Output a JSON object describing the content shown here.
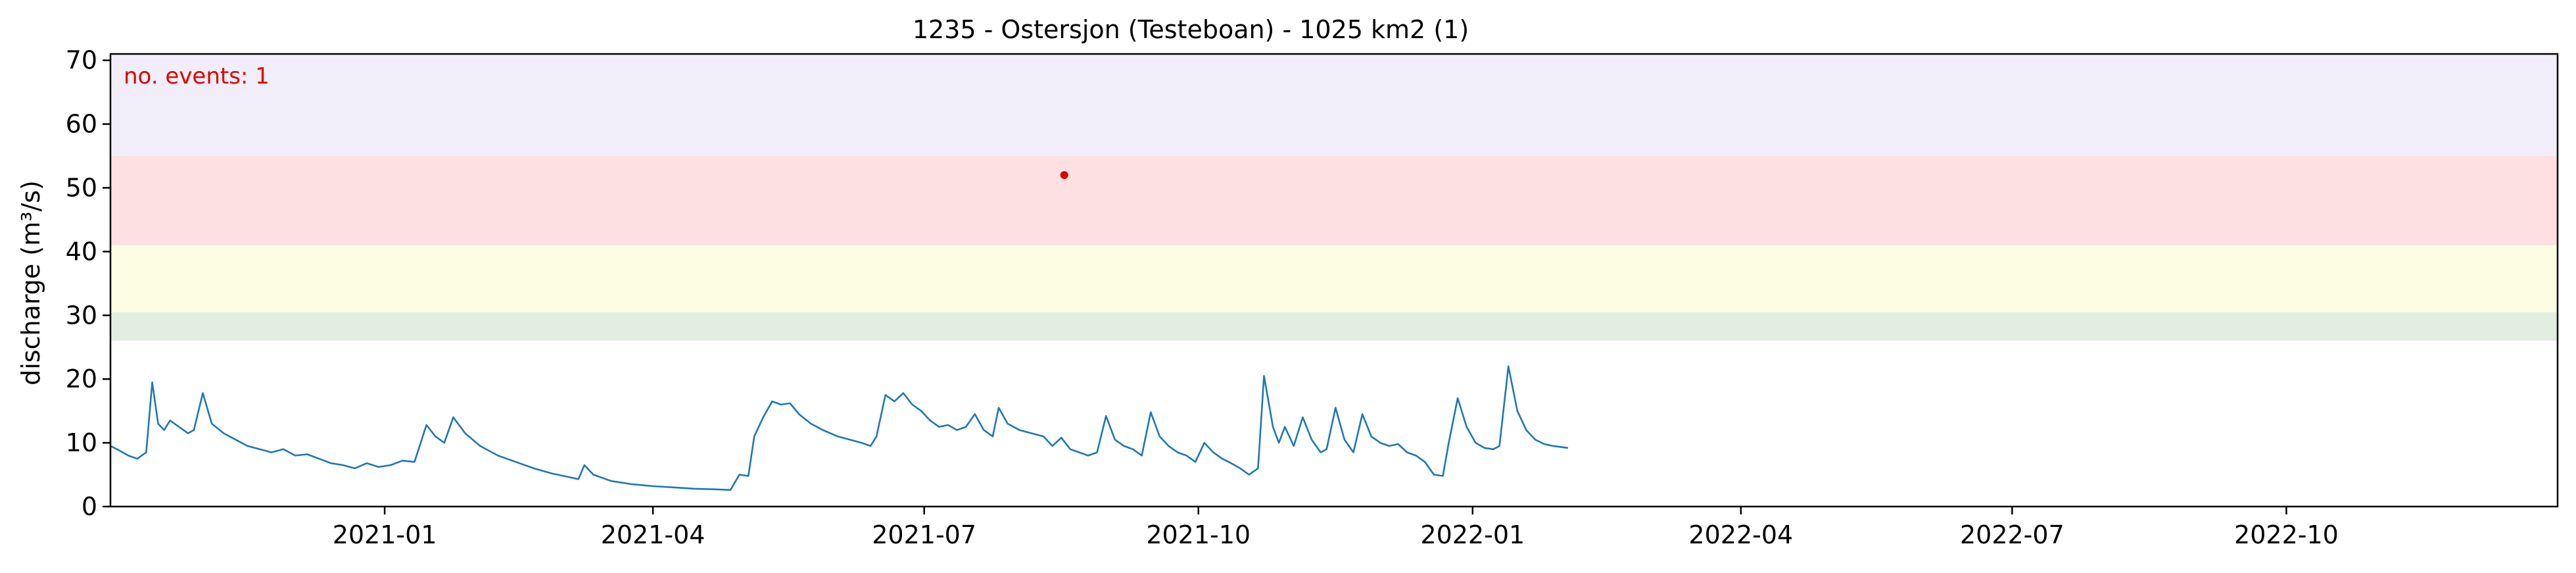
{
  "chart_data": {
    "type": "line",
    "title": "1235 - Ostersjon (Testeboan) - 1025 km2 (1)",
    "xlabel": "",
    "ylabel": "discharge (m³/s)",
    "xlim": [
      "2020-10-01",
      "2022-12-31"
    ],
    "ylim": [
      0,
      71
    ],
    "y_ticks": [
      0,
      10,
      20,
      30,
      40,
      50,
      60,
      70
    ],
    "x_ticks": [
      "2021-01",
      "2021-04",
      "2021-07",
      "2021-10",
      "2022-01",
      "2022-04",
      "2022-07",
      "2022-10"
    ],
    "grid": false,
    "line_color": "#1f77b4",
    "bands": [
      {
        "from": 26,
        "to": 30.5,
        "color": "#e2efe0"
      },
      {
        "from": 30.5,
        "to": 41,
        "color": "#fdfde4"
      },
      {
        "from": 41,
        "to": 55,
        "color": "#fde0e2"
      },
      {
        "from": 55,
        "to": 71,
        "color": "#f1eefa"
      }
    ],
    "annotation": {
      "text": "no. events: 1",
      "color": "#e00000"
    },
    "event_marker": {
      "x": "2021-08-17",
      "y": 52,
      "color": "#e00000"
    },
    "series": [
      {
        "points": [
          [
            "2020-10-01",
            9.5
          ],
          [
            "2020-10-04",
            8.8
          ],
          [
            "2020-10-07",
            8.0
          ],
          [
            "2020-10-10",
            7.5
          ],
          [
            "2020-10-13",
            8.5
          ],
          [
            "2020-10-15",
            19.5
          ],
          [
            "2020-10-17",
            13.0
          ],
          [
            "2020-10-19",
            12.0
          ],
          [
            "2020-10-21",
            13.5
          ],
          [
            "2020-10-24",
            12.5
          ],
          [
            "2020-10-27",
            11.5
          ],
          [
            "2020-10-29",
            12.0
          ],
          [
            "2020-11-01",
            17.8
          ],
          [
            "2020-11-04",
            13.0
          ],
          [
            "2020-11-08",
            11.5
          ],
          [
            "2020-11-12",
            10.5
          ],
          [
            "2020-11-16",
            9.5
          ],
          [
            "2020-11-20",
            9.0
          ],
          [
            "2020-11-24",
            8.5
          ],
          [
            "2020-11-28",
            9.0
          ],
          [
            "2020-12-02",
            8.0
          ],
          [
            "2020-12-06",
            8.2
          ],
          [
            "2020-12-10",
            7.5
          ],
          [
            "2020-12-14",
            6.8
          ],
          [
            "2020-12-18",
            6.5
          ],
          [
            "2020-12-22",
            6.0
          ],
          [
            "2020-12-26",
            6.8
          ],
          [
            "2020-12-30",
            6.2
          ],
          [
            "2021-01-03",
            6.5
          ],
          [
            "2021-01-07",
            7.2
          ],
          [
            "2021-01-11",
            7.0
          ],
          [
            "2021-01-15",
            12.8
          ],
          [
            "2021-01-18",
            11.0
          ],
          [
            "2021-01-21",
            10.0
          ],
          [
            "2021-01-24",
            14.0
          ],
          [
            "2021-01-28",
            11.5
          ],
          [
            "2021-02-02",
            9.5
          ],
          [
            "2021-02-08",
            8.0
          ],
          [
            "2021-02-14",
            7.0
          ],
          [
            "2021-02-20",
            6.0
          ],
          [
            "2021-02-26",
            5.2
          ],
          [
            "2021-03-04",
            4.6
          ],
          [
            "2021-03-07",
            4.3
          ],
          [
            "2021-03-09",
            6.5
          ],
          [
            "2021-03-12",
            5.0
          ],
          [
            "2021-03-18",
            4.0
          ],
          [
            "2021-03-25",
            3.5
          ],
          [
            "2021-04-01",
            3.2
          ],
          [
            "2021-04-08",
            3.0
          ],
          [
            "2021-04-15",
            2.8
          ],
          [
            "2021-04-22",
            2.7
          ],
          [
            "2021-04-27",
            2.6
          ],
          [
            "2021-04-30",
            5.0
          ],
          [
            "2021-05-03",
            4.8
          ],
          [
            "2021-05-05",
            11.0
          ],
          [
            "2021-05-08",
            14.0
          ],
          [
            "2021-05-11",
            16.5
          ],
          [
            "2021-05-14",
            16.0
          ],
          [
            "2021-05-17",
            16.2
          ],
          [
            "2021-05-20",
            14.5
          ],
          [
            "2021-05-24",
            13.0
          ],
          [
            "2021-05-28",
            12.0
          ],
          [
            "2021-06-02",
            11.0
          ],
          [
            "2021-06-06",
            10.5
          ],
          [
            "2021-06-10",
            10.0
          ],
          [
            "2021-06-13",
            9.5
          ],
          [
            "2021-06-15",
            11.0
          ],
          [
            "2021-06-18",
            17.5
          ],
          [
            "2021-06-21",
            16.5
          ],
          [
            "2021-06-24",
            17.8
          ],
          [
            "2021-06-27",
            16.0
          ],
          [
            "2021-06-30",
            15.0
          ],
          [
            "2021-07-03",
            13.5
          ],
          [
            "2021-07-06",
            12.5
          ],
          [
            "2021-07-09",
            12.8
          ],
          [
            "2021-07-12",
            12.0
          ],
          [
            "2021-07-15",
            12.5
          ],
          [
            "2021-07-18",
            14.5
          ],
          [
            "2021-07-21",
            12.0
          ],
          [
            "2021-07-24",
            11.0
          ],
          [
            "2021-07-26",
            15.5
          ],
          [
            "2021-07-29",
            13.0
          ],
          [
            "2021-08-02",
            12.0
          ],
          [
            "2021-08-06",
            11.5
          ],
          [
            "2021-08-10",
            11.0
          ],
          [
            "2021-08-13",
            9.5
          ],
          [
            "2021-08-16",
            10.8
          ],
          [
            "2021-08-19",
            9.0
          ],
          [
            "2021-08-22",
            8.5
          ],
          [
            "2021-08-25",
            8.0
          ],
          [
            "2021-08-28",
            8.5
          ],
          [
            "2021-08-31",
            14.2
          ],
          [
            "2021-09-03",
            10.5
          ],
          [
            "2021-09-06",
            9.5
          ],
          [
            "2021-09-09",
            9.0
          ],
          [
            "2021-09-12",
            8.0
          ],
          [
            "2021-09-15",
            14.8
          ],
          [
            "2021-09-18",
            11.0
          ],
          [
            "2021-09-21",
            9.5
          ],
          [
            "2021-09-24",
            8.5
          ],
          [
            "2021-09-27",
            8.0
          ],
          [
            "2021-09-30",
            7.0
          ],
          [
            "2021-10-03",
            10.0
          ],
          [
            "2021-10-06",
            8.5
          ],
          [
            "2021-10-09",
            7.5
          ],
          [
            "2021-10-12",
            6.8
          ],
          [
            "2021-10-15",
            6.0
          ],
          [
            "2021-10-18",
            5.0
          ],
          [
            "2021-10-21",
            6.0
          ],
          [
            "2021-10-23",
            20.5
          ],
          [
            "2021-10-26",
            12.5
          ],
          [
            "2021-10-28",
            10.0
          ],
          [
            "2021-10-30",
            12.5
          ],
          [
            "2021-11-02",
            9.5
          ],
          [
            "2021-11-05",
            14.0
          ],
          [
            "2021-11-08",
            10.5
          ],
          [
            "2021-11-11",
            8.5
          ],
          [
            "2021-11-13",
            9.0
          ],
          [
            "2021-11-16",
            15.5
          ],
          [
            "2021-11-19",
            10.5
          ],
          [
            "2021-11-22",
            8.5
          ],
          [
            "2021-11-25",
            14.5
          ],
          [
            "2021-11-28",
            11.0
          ],
          [
            "2021-12-01",
            10.0
          ],
          [
            "2021-12-04",
            9.5
          ],
          [
            "2021-12-07",
            9.8
          ],
          [
            "2021-12-10",
            8.5
          ],
          [
            "2021-12-13",
            8.0
          ],
          [
            "2021-12-16",
            7.0
          ],
          [
            "2021-12-19",
            5.0
          ],
          [
            "2021-12-22",
            4.8
          ],
          [
            "2021-12-24",
            10.0
          ],
          [
            "2021-12-27",
            17.0
          ],
          [
            "2021-12-30",
            12.5
          ],
          [
            "2022-01-02",
            10.0
          ],
          [
            "2022-01-05",
            9.2
          ],
          [
            "2022-01-08",
            9.0
          ],
          [
            "2022-01-10",
            9.5
          ],
          [
            "2022-01-13",
            22.0
          ],
          [
            "2022-01-16",
            15.0
          ],
          [
            "2022-01-19",
            12.0
          ],
          [
            "2022-01-22",
            10.5
          ],
          [
            "2022-01-25",
            9.8
          ],
          [
            "2022-01-28",
            9.5
          ],
          [
            "2022-02-02",
            9.2
          ]
        ],
        "note": ""
      }
    ]
  }
}
